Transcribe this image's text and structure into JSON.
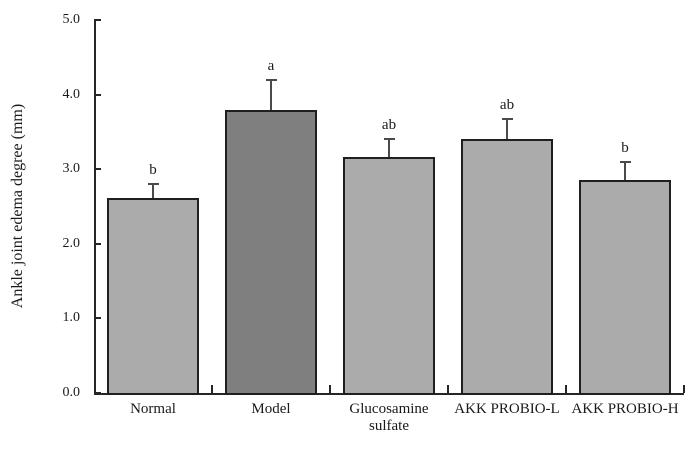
{
  "chart_data": {
    "type": "bar",
    "title": "",
    "xlabel": "",
    "ylabel": "Ankle joint edema degree (mm)",
    "ylim": [
      0,
      5
    ],
    "ytick_step": 1.0,
    "ytick_labels": [
      "0.0",
      "1.0",
      "2.0",
      "3.0",
      "4.0",
      "5.0"
    ],
    "grid": "off",
    "legend": "none",
    "categories": [
      "Normal",
      "Model",
      "Glucosamine sulfate",
      "AKK PROBIO-L",
      "AKK PROBIO-H"
    ],
    "category_label_lines": [
      [
        "Normal"
      ],
      [
        "Model"
      ],
      [
        "Glucosamine",
        "sulfate"
      ],
      [
        "AKK PROBIO-L"
      ],
      [
        "AKK PROBIO-H"
      ]
    ],
    "values": [
      2.61,
      3.79,
      3.16,
      3.4,
      2.85
    ],
    "error_bars": [
      0.19,
      0.4,
      0.24,
      0.27,
      0.25
    ],
    "significance_letters": [
      "b",
      "a",
      "ab",
      "ab",
      "b"
    ],
    "bar_colors": [
      "#ababab",
      "#7f7f7f",
      "#ababab",
      "#ababab",
      "#ababab"
    ],
    "bar_border_color": "#1f1f1f",
    "axis_color": "#262626",
    "error_bar_color": "#4a4a4a",
    "background_color": "#ffffff"
  }
}
